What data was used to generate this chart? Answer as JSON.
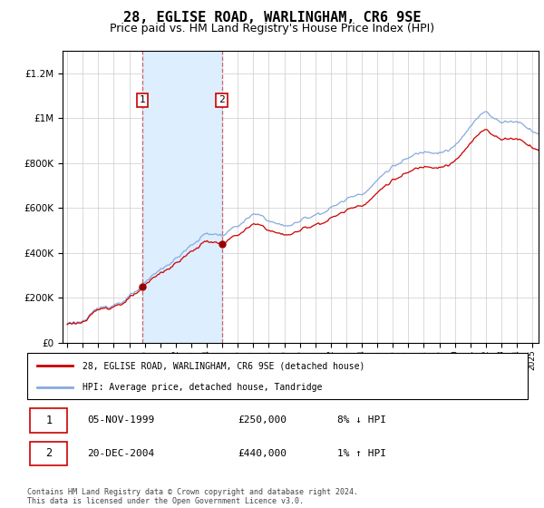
{
  "title": "28, EGLISE ROAD, WARLINGHAM, CR6 9SE",
  "subtitle": "Price paid vs. HM Land Registry's House Price Index (HPI)",
  "title_fontsize": 11,
  "subtitle_fontsize": 9,
  "ylim": [
    0,
    1300000
  ],
  "yticks": [
    0,
    200000,
    400000,
    600000,
    800000,
    1000000,
    1200000
  ],
  "ytick_labels": [
    "£0",
    "£200K",
    "£400K",
    "£600K",
    "£800K",
    "£1M",
    "£1.2M"
  ],
  "xtick_years": [
    1995,
    1996,
    1997,
    1998,
    1999,
    2000,
    2001,
    2002,
    2003,
    2004,
    2005,
    2006,
    2007,
    2008,
    2009,
    2010,
    2011,
    2012,
    2013,
    2014,
    2015,
    2016,
    2017,
    2018,
    2019,
    2020,
    2021,
    2022,
    2023,
    2024,
    2025
  ],
  "hpi_color": "#88aadd",
  "price_color": "#cc0000",
  "marker_color": "#990000",
  "shade_color": "#ddeeff",
  "sale1_year": 1999.85,
  "sale1_price": 250000,
  "sale2_year": 2004.97,
  "sale2_price": 440000,
  "legend1": "28, EGLISE ROAD, WARLINGHAM, CR6 9SE (detached house)",
  "legend2": "HPI: Average price, detached house, Tandridge",
  "footer": "Contains HM Land Registry data © Crown copyright and database right 2024.\nThis data is licensed under the Open Government Licence v3.0.",
  "table_row1": [
    "1",
    "05-NOV-1999",
    "£250,000",
    "8% ↓ HPI"
  ],
  "table_row2": [
    "2",
    "20-DEC-2004",
    "£440,000",
    "1% ↑ HPI"
  ]
}
